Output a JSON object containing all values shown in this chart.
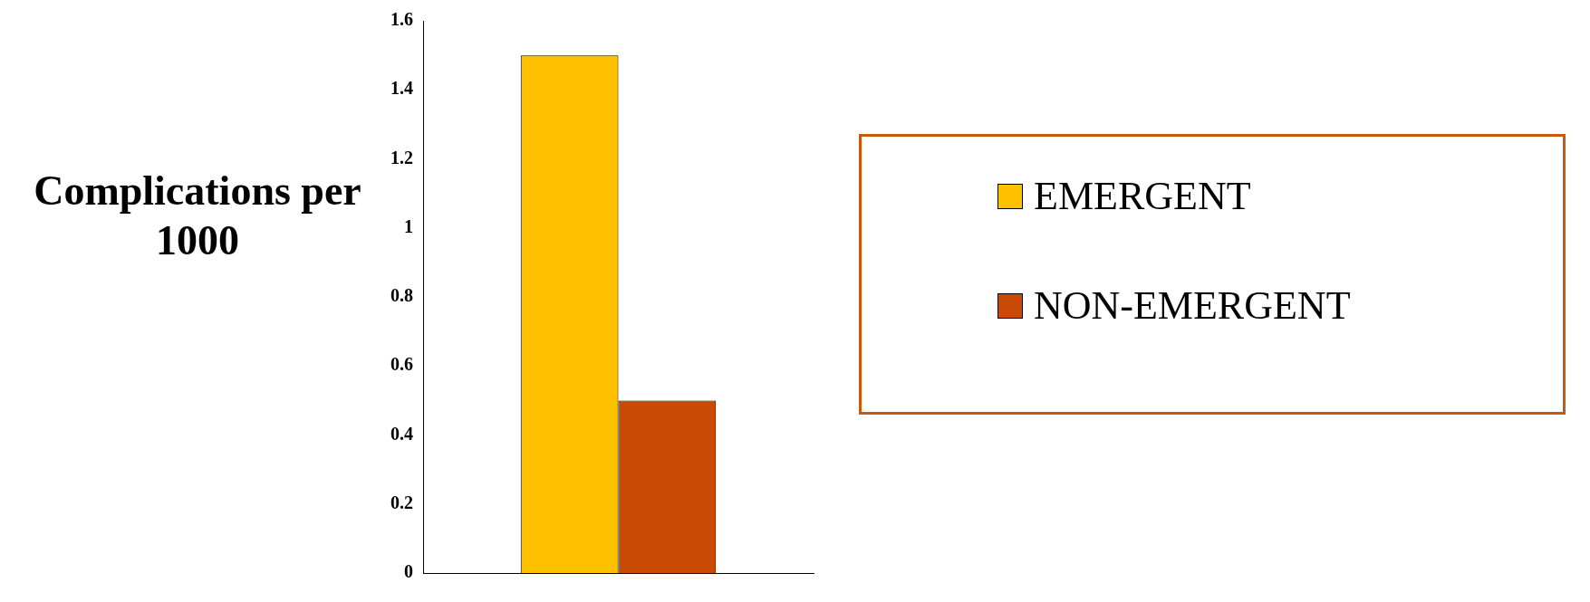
{
  "chart_data": {
    "type": "bar",
    "ylabel": "Complications per 1000",
    "categories": [
      null
    ],
    "series": [
      {
        "name": "EMERGENT",
        "color": "#ffc000",
        "values": [
          1.5
        ]
      },
      {
        "name": "NON-EMERGENT",
        "color": "#c94a05",
        "values": [
          0.5
        ]
      }
    ],
    "ylim": [
      0,
      1.6
    ],
    "yticks": [
      0,
      0.2,
      0.4,
      0.6,
      0.8,
      1,
      1.2,
      1.4,
      1.6
    ],
    "grid": false,
    "legend": "right"
  }
}
